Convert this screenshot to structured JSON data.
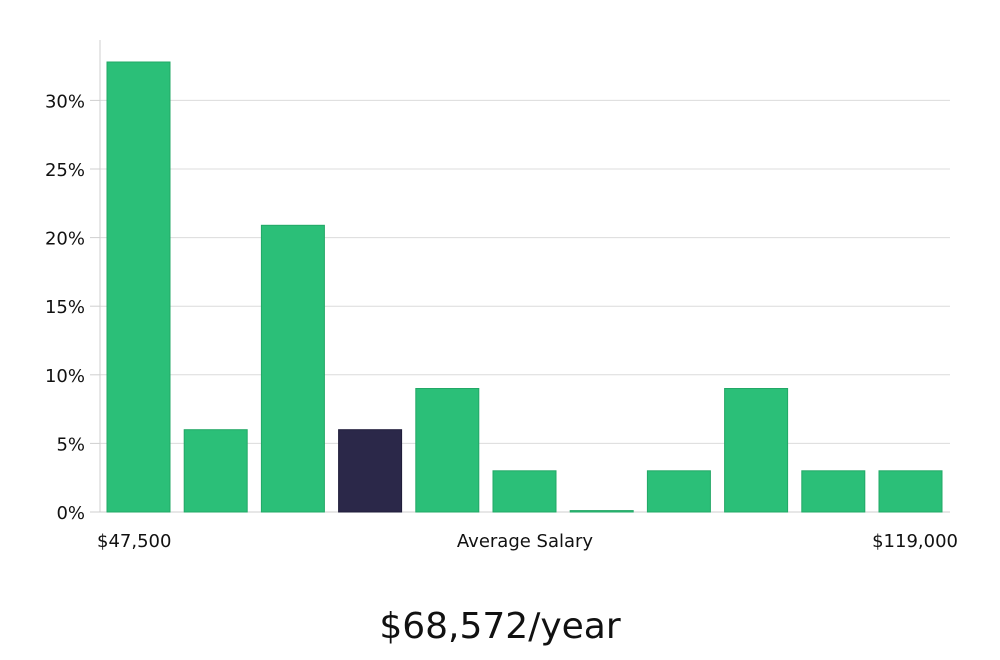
{
  "chart_data": {
    "type": "bar",
    "x_start_label": "$47,500",
    "xlabel": "Average Salary",
    "x_end_label": "$119,000",
    "y_ticks": [
      "0%",
      "5%",
      "10%",
      "15%",
      "20%",
      "25%",
      "30%"
    ],
    "ylim": [
      0,
      34
    ],
    "unit": "%",
    "grid": true,
    "values": [
      32.8,
      6.0,
      20.9,
      6.0,
      9.0,
      3.0,
      0.1,
      3.0,
      9.0,
      3.0,
      3.0
    ],
    "highlight_index": 3,
    "colors": {
      "bar": "#2bbf78",
      "bar_stroke": "#22a866",
      "highlight": "#2b2849",
      "grid": "#dcdcdc",
      "axis": "#cfcfcf"
    }
  },
  "headline": "$68,572/year"
}
